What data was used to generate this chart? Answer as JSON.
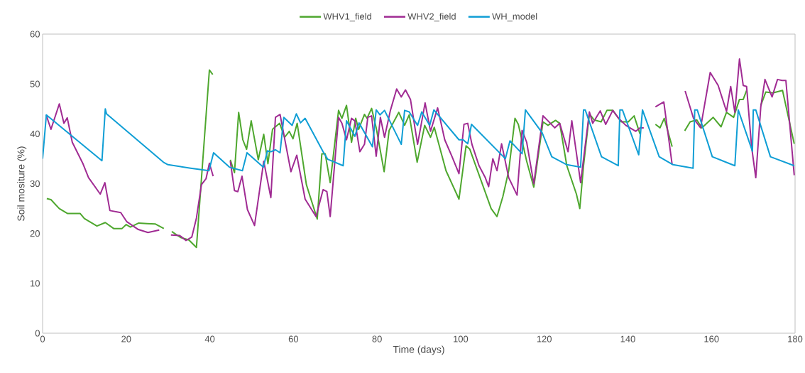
{
  "chart_data": {
    "type": "line",
    "xlabel": "Time (days)",
    "ylabel": "Soil mositure (%)",
    "xlim": [
      0,
      180
    ],
    "ylim": [
      0,
      60
    ],
    "xticks": [
      0,
      20,
      40,
      60,
      80,
      100,
      120,
      140,
      160,
      180
    ],
    "yticks": [
      0,
      10,
      20,
      30,
      40,
      50,
      60
    ],
    "legend": "top",
    "marker": "none",
    "series": [
      {
        "name": "WHV1_field",
        "color": "#4ea72e",
        "x": [
          1,
          2,
          4,
          6,
          9,
          10,
          12,
          13,
          15,
          17,
          19,
          20,
          21,
          23,
          25,
          27,
          29,
          30,
          30.9,
          33,
          35,
          36.8,
          39.9,
          40.7,
          42,
          44.9,
          45.9,
          46.9,
          47.9,
          48.8,
          49.9,
          51.6,
          52.9,
          53.9,
          55,
          56.7,
          57.9,
          59,
          59.9,
          60.9,
          63.1,
          65.7,
          66.8,
          67.6,
          68.8,
          70.8,
          71.6,
          72.7,
          73.9,
          74.9,
          75.6,
          77,
          77.6,
          78.7,
          79.8,
          81.7,
          82.9,
          85.2,
          86.6,
          87.7,
          89.6,
          91.4,
          92.8,
          93.7,
          96.5,
          99.6,
          101.3,
          102.2,
          107.3,
          108.7,
          110.1,
          111.5,
          113,
          113.8,
          115.8,
          117.5,
          119.7,
          120.9,
          122.7,
          123.7,
          125.4,
          127.7,
          128.5,
          129.4,
          130.8,
          131.9,
          133.6,
          135,
          136.4,
          138.4,
          140.1,
          141.5,
          142.9,
          145,
          146.6,
          147.7,
          148.7,
          150.6,
          152,
          153.6,
          154.9,
          156.5,
          157.7,
          160.4,
          162.3,
          163.6,
          165.3,
          166.7,
          167.6,
          168.4,
          170.6,
          171.8,
          173,
          174.7,
          177,
          179.8
        ],
        "values": [
          27.0,
          26.8,
          25.0,
          24.0,
          24.0,
          23.0,
          22.0,
          21.5,
          22.2,
          21.0,
          21.0,
          21.8,
          21.3,
          22.1,
          22.0,
          21.9,
          21.0,
          null,
          20.4,
          19.2,
          18.7,
          17.2,
          52.8,
          51.9,
          null,
          34.8,
          32.2,
          44.3,
          38.8,
          36.9,
          42.6,
          34.8,
          39.9,
          34.0,
          40.9,
          42.1,
          39.3,
          40.5,
          39.0,
          42.1,
          29.8,
          22.9,
          36.0,
          36.0,
          30.2,
          44.7,
          43.1,
          45.7,
          38.3,
          43.1,
          40.9,
          43.9,
          43.1,
          45.1,
          41.2,
          32.4,
          40.7,
          44.3,
          41.7,
          43.8,
          34.3,
          41.7,
          39.3,
          41.3,
          32.6,
          26.9,
          37.6,
          36.9,
          25.0,
          23.4,
          27.4,
          32.6,
          43.1,
          41.9,
          34.5,
          29.3,
          42.4,
          41.7,
          42.7,
          42.1,
          33.6,
          27.9,
          25.0,
          33.6,
          44.0,
          42.8,
          42.4,
          44.7,
          44.7,
          42.4,
          42.4,
          43.6,
          40.0,
          null,
          41.9,
          41.2,
          43.1,
          37.4,
          null,
          40.6,
          42.4,
          42.8,
          41.2,
          43.3,
          41.4,
          44.3,
          43.3,
          46.9,
          46.9,
          48.7,
          null,
          45.7,
          48.4,
          48.2,
          48.7,
          38.0
        ]
      },
      {
        "name": "WHV2_field",
        "color": "#a02b93",
        "x": [
          0.85,
          2,
          4,
          5.1,
          5.9,
          7.1,
          9.6,
          11,
          13.8,
          14.9,
          16.1,
          18.7,
          20.1,
          22.9,
          25.2,
          27.9,
          29,
          30.7,
          32.8,
          34.3,
          35.7,
          36.8,
          38,
          39.1,
          39.9,
          40.8,
          42,
          44.9,
          45.9,
          46.7,
          47.7,
          49,
          50.7,
          52.9,
          54.6,
          55.7,
          56.8,
          59.4,
          60.8,
          62.8,
          65.4,
          67.1,
          68,
          68.8,
          70.8,
          71.6,
          72.7,
          73.9,
          74.7,
          75.9,
          77,
          77.8,
          78.7,
          79.8,
          80.8,
          81.8,
          83.2,
          84.7,
          85.8,
          86.8,
          88,
          89.7,
          91.5,
          92.8,
          94.5,
          96.2,
          97.9,
          99.6,
          100.8,
          101.7,
          102.7,
          104.4,
          105.9,
          106.7,
          107.7,
          108.7,
          109.8,
          111.5,
          113.5,
          114.7,
          115.8,
          117.5,
          119.7,
          120.9,
          122.5,
          123.7,
          125.7,
          126.6,
          128.7,
          130.8,
          131.6,
          133.4,
          134.7,
          136.4,
          137.8,
          139.5,
          141.9,
          142.9,
          143.8,
          145,
          146.6,
          148.6,
          150.6,
          152,
          153.7,
          155.7,
          157.4,
          159.7,
          161.6,
          163.6,
          164.6,
          165.6,
          166.7,
          167.6,
          168.4,
          169.6,
          170.6,
          171.8,
          172.8,
          174.5,
          175.8,
          176.9,
          177.8,
          179.8
        ],
        "values": [
          43.8,
          40.9,
          46.0,
          42.1,
          43.2,
          38.3,
          34.1,
          31.2,
          27.9,
          30.2,
          24.6,
          24.2,
          22.4,
          20.8,
          20.2,
          20.7,
          null,
          19.7,
          19.6,
          18.6,
          19.3,
          23.1,
          29.8,
          31.0,
          34.1,
          31.5,
          null,
          34.5,
          28.6,
          28.4,
          31.5,
          24.8,
          21.6,
          34.5,
          27.2,
          43.3,
          43.9,
          32.4,
          35.7,
          26.9,
          23.4,
          28.8,
          28.4,
          23.4,
          43.3,
          42.1,
          38.8,
          43.1,
          42.6,
          36.4,
          37.9,
          43.3,
          43.6,
          35.5,
          43.3,
          39.3,
          44.7,
          49.0,
          47.4,
          48.8,
          46.9,
          37.9,
          46.2,
          40.5,
          45.2,
          38.8,
          35.5,
          32.0,
          41.9,
          42.1,
          37.9,
          33.6,
          31.2,
          29.4,
          35.0,
          32.6,
          38.0,
          31.2,
          27.7,
          40.7,
          38.3,
          30.0,
          43.6,
          42.6,
          41.2,
          42.1,
          36.4,
          42.6,
          30.2,
          44.4,
          42.1,
          44.6,
          41.9,
          44.7,
          43.1,
          41.7,
          40.5,
          41.2,
          41.2,
          null,
          45.4,
          46.4,
          33.8,
          null,
          48.6,
          43.1,
          41.2,
          52.3,
          49.7,
          44.5,
          49.5,
          44.3,
          55.0,
          49.7,
          49.5,
          37.4,
          31.2,
          45.4,
          50.9,
          47.4,
          50.9,
          50.7,
          50.7,
          31.7
        ]
      },
      {
        "name": "WH_model",
        "color": "#0f9ed5",
        "x": [
          0,
          0.9,
          14.2,
          15,
          15.3,
          28.9,
          30,
          35.4,
          39.8,
          40.9,
          44.7,
          47.8,
          48.9,
          52.8,
          53.8,
          54.6,
          55.7,
          56.8,
          57.7,
          59.7,
          60.7,
          61.7,
          62.8,
          67.1,
          68.2,
          71.9,
          72.7,
          74.7,
          75.7,
          78.9,
          79.8,
          80.7,
          81.8,
          85.8,
          86.6,
          87.7,
          89.7,
          90.7,
          92.6,
          93.6,
          99.6,
          100.6,
          101.7,
          102.6,
          110.7,
          111.8,
          114.7,
          115.5,
          119.5,
          121.8,
          125.4,
          128.7,
          129.4,
          129.8,
          133.7,
          137.7,
          138.1,
          138.7,
          142.6,
          143.5,
          147.5,
          150.8,
          155.6,
          156,
          156.6,
          160.2,
          165.6,
          166.4,
          169.8,
          170,
          170.6,
          174.1,
          179.8
        ],
        "values": [
          35.0,
          43.8,
          34.6,
          45.0,
          44.0,
          34.3,
          33.8,
          33.1,
          32.6,
          36.2,
          33.3,
          32.6,
          36.2,
          33.3,
          36.6,
          36.4,
          36.8,
          36.2,
          43.3,
          41.7,
          44.0,
          42.2,
          43.1,
          36.4,
          34.9,
          33.6,
          42.6,
          39.5,
          42.2,
          37.4,
          44.8,
          43.8,
          44.7,
          37.9,
          44.7,
          44.4,
          41.7,
          44.4,
          41.7,
          44.8,
          38.8,
          38.8,
          38.0,
          41.9,
          35.0,
          38.6,
          36.0,
          44.8,
          40.2,
          35.4,
          33.8,
          33.3,
          44.8,
          44.8,
          35.4,
          33.6,
          44.8,
          44.8,
          35.8,
          44.8,
          35.4,
          33.8,
          33.1,
          44.8,
          44.8,
          35.4,
          33.6,
          44.8,
          36.5,
          44.8,
          44.8,
          35.4,
          33.6
        ]
      }
    ]
  }
}
